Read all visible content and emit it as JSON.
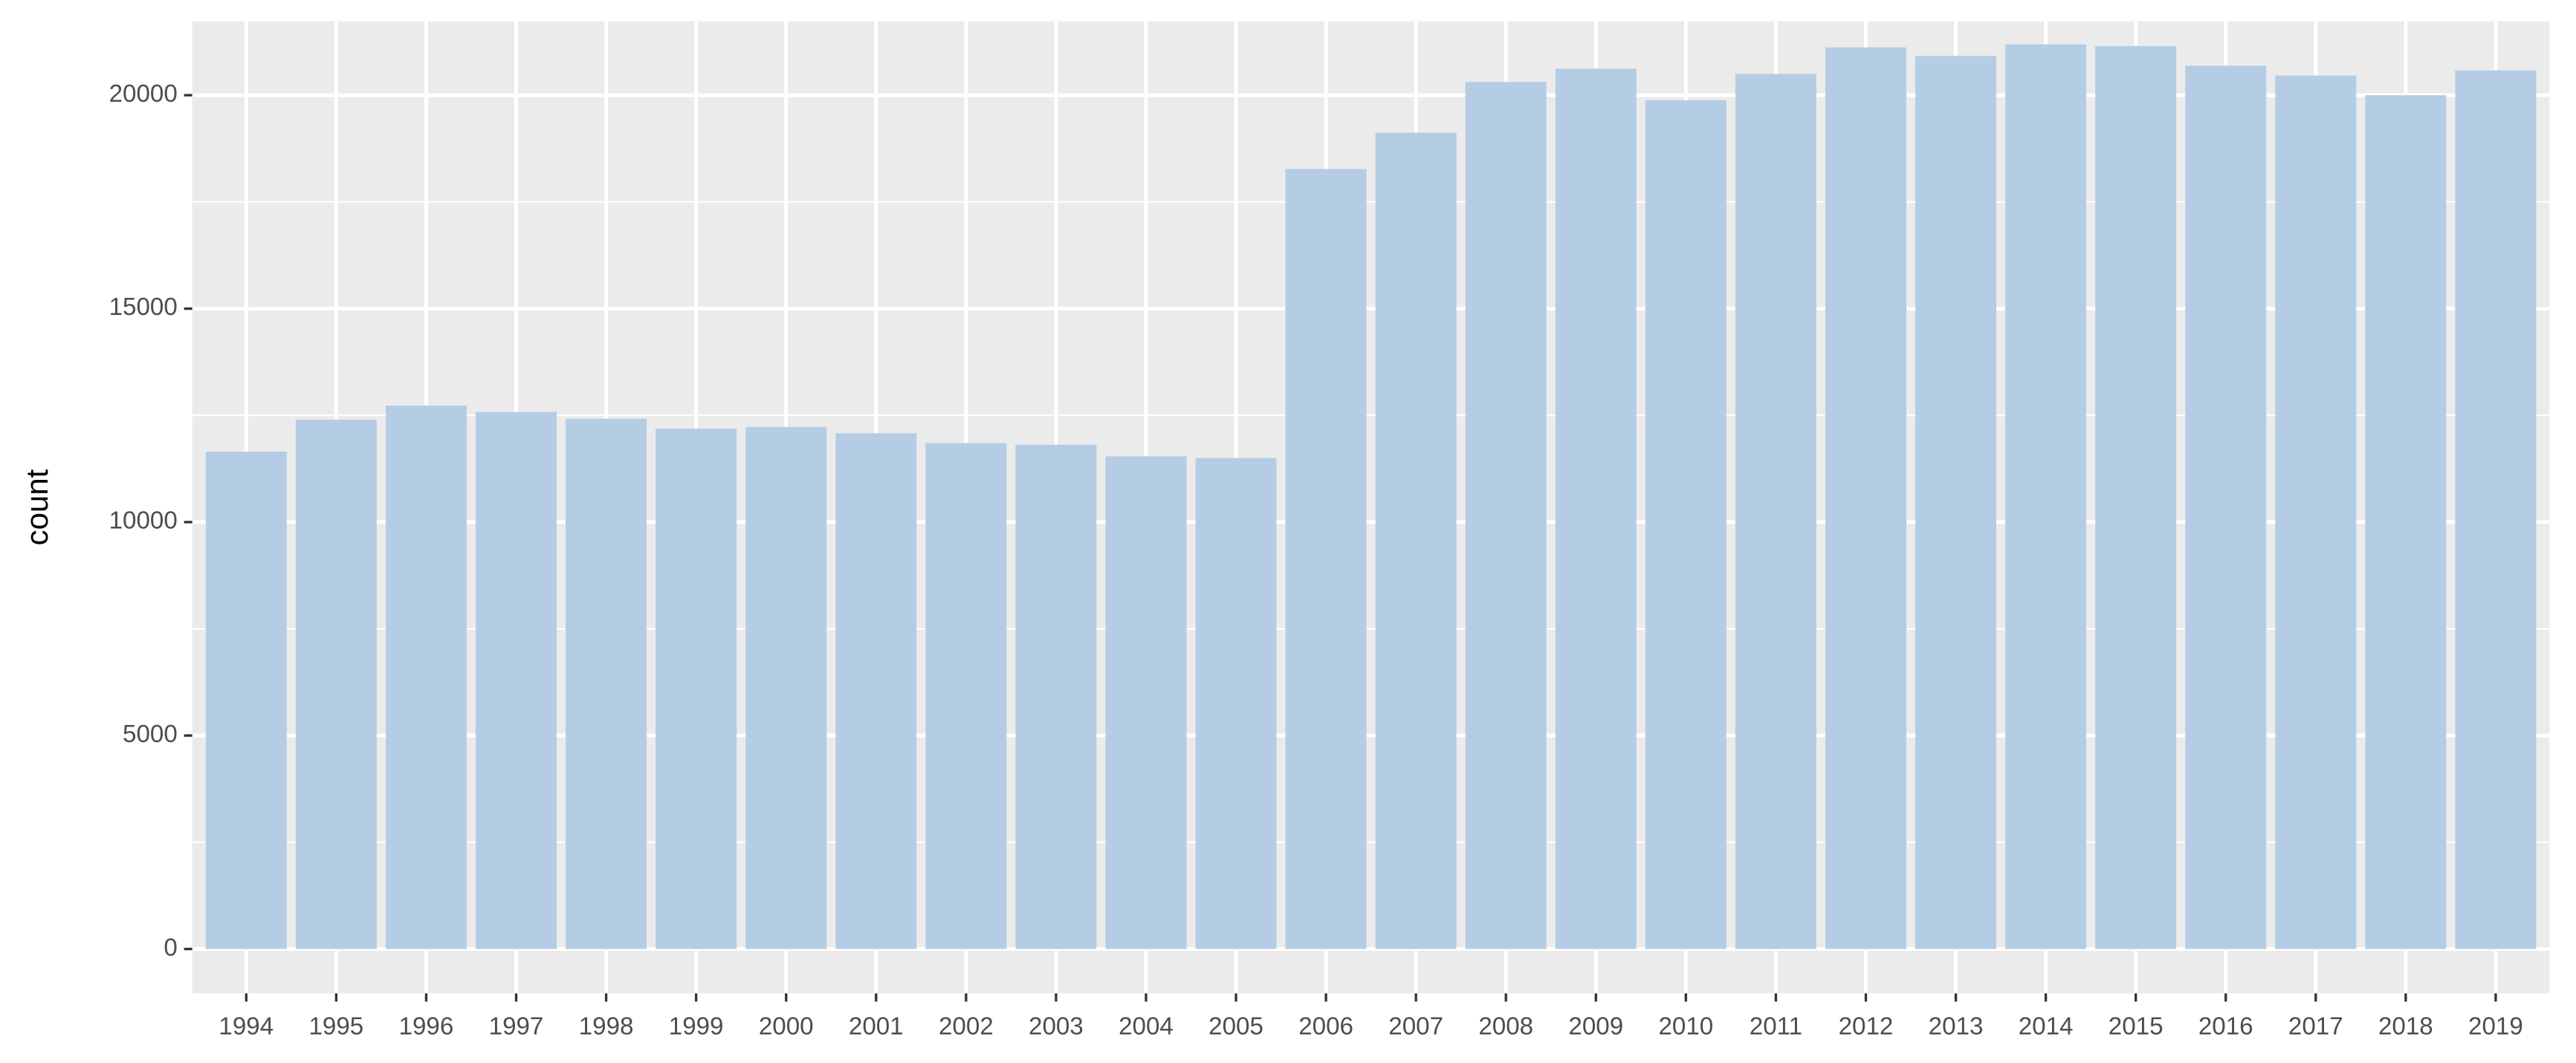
{
  "chart_data": {
    "type": "bar",
    "y_label": "count",
    "categories": [
      "1994",
      "1995",
      "1996",
      "1997",
      "1998",
      "1999",
      "2000",
      "2001",
      "2002",
      "2003",
      "2004",
      "2005",
      "2006",
      "2007",
      "2008",
      "2009",
      "2010",
      "2011",
      "2012",
      "2013",
      "2014",
      "2015",
      "2016",
      "2017",
      "2018",
      "2019"
    ],
    "values": [
      11650,
      12400,
      12730,
      12580,
      12420,
      12190,
      12230,
      12080,
      11850,
      11810,
      11540,
      11500,
      18270,
      19120,
      20310,
      20620,
      19880,
      20500,
      21120,
      20920,
      21190,
      21150,
      20690,
      20460,
      20000,
      20580
    ],
    "color": "#b4cde4",
    "ylim": [
      -1040,
      21730
    ],
    "yticks": [
      0,
      5000,
      10000,
      15000,
      20000
    ],
    "minor_yticks": [
      2500,
      7500,
      12500,
      17500
    ],
    "grid": true
  }
}
